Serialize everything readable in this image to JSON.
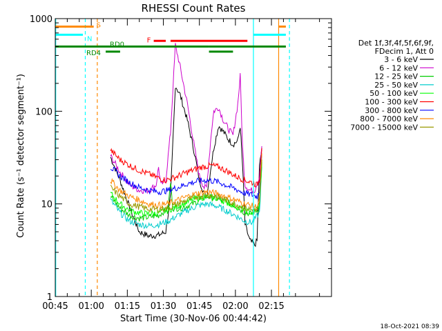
{
  "chart_data": {
    "type": "line",
    "title": "RHESSI Count Rates",
    "xlabel": "Start Time (30-Nov-06 00:44:42)",
    "ylabel": "Count Rate (s⁻¹ detector segment⁻¹)",
    "y_scale": "log",
    "ylim": [
      1,
      1000
    ],
    "xlim_minutes": [
      45,
      160
    ],
    "x_ticks": [
      {
        "m": 45,
        "label": "00:45"
      },
      {
        "m": 60,
        "label": "01:00"
      },
      {
        "m": 75,
        "label": "01:15"
      },
      {
        "m": 90,
        "label": "01:30"
      },
      {
        "m": 105,
        "label": "01:45"
      },
      {
        "m": 120,
        "label": "02:00"
      },
      {
        "m": 135,
        "label": "02:15"
      }
    ],
    "y_ticks": [
      {
        "v": 1,
        "label": "1"
      },
      {
        "v": 10,
        "label": "10"
      },
      {
        "v": 100,
        "label": "100"
      },
      {
        "v": 1000,
        "label": "1000"
      }
    ],
    "legend_header": [
      "Det 1f,3f,4f,5f,6f,9f,",
      "FDecim 1, Att 0"
    ],
    "series": [
      {
        "name": "3 - 6 keV",
        "color": "#000000",
        "points": [
          [
            68,
            32
          ],
          [
            72,
            18
          ],
          [
            76,
            9
          ],
          [
            80,
            5
          ],
          [
            84,
            4.5
          ],
          [
            88,
            4.6
          ],
          [
            91,
            5
          ],
          [
            93,
            12
          ],
          [
            95,
            190
          ],
          [
            97,
            150
          ],
          [
            100,
            80
          ],
          [
            103,
            35
          ],
          [
            105,
            18
          ],
          [
            107,
            13
          ],
          [
            108,
            12
          ],
          [
            111,
            40
          ],
          [
            113,
            70
          ],
          [
            115,
            60
          ],
          [
            117,
            50
          ],
          [
            119,
            44
          ],
          [
            121,
            48
          ],
          [
            122,
            70
          ],
          [
            123,
            25
          ],
          [
            124,
            6
          ],
          [
            126,
            4
          ],
          [
            128,
            3.6
          ],
          [
            129,
            4
          ],
          [
            130,
            25
          ],
          [
            131,
            40
          ]
        ]
      },
      {
        "name": "6 - 12 keV",
        "color": "#cc00cc",
        "points": [
          [
            68,
            33
          ],
          [
            72,
            22
          ],
          [
            76,
            16
          ],
          [
            80,
            14
          ],
          [
            84,
            14
          ],
          [
            87,
            16
          ],
          [
            88,
            25
          ],
          [
            89,
            16
          ],
          [
            91,
            18
          ],
          [
            93,
            60
          ],
          [
            95,
            520
          ],
          [
            97,
            300
          ],
          [
            100,
            120
          ],
          [
            103,
            40
          ],
          [
            105,
            20
          ],
          [
            107,
            15
          ],
          [
            108,
            15
          ],
          [
            110,
            60
          ],
          [
            111,
            100
          ],
          [
            113,
            110
          ],
          [
            115,
            80
          ],
          [
            117,
            65
          ],
          [
            119,
            55
          ],
          [
            121,
            120
          ],
          [
            122,
            240
          ],
          [
            123,
            40
          ],
          [
            124,
            16
          ],
          [
            126,
            14
          ],
          [
            128,
            14
          ],
          [
            130,
            20
          ],
          [
            131,
            42
          ]
        ]
      },
      {
        "name": "12 - 25 keV",
        "color": "#00cc00",
        "points": [
          [
            68,
            12
          ],
          [
            72,
            9
          ],
          [
            76,
            7.5
          ],
          [
            80,
            7
          ],
          [
            84,
            7.2
          ],
          [
            88,
            7.5
          ],
          [
            92,
            9
          ],
          [
            93,
            17
          ],
          [
            94,
            9
          ],
          [
            97,
            9
          ],
          [
            100,
            9.5
          ],
          [
            104,
            10.5
          ],
          [
            108,
            12
          ],
          [
            112,
            11.5
          ],
          [
            116,
            10.5
          ],
          [
            120,
            9.5
          ],
          [
            124,
            8
          ],
          [
            127,
            7.8
          ],
          [
            130,
            9
          ],
          [
            131,
            30
          ]
        ]
      },
      {
        "name": "25 - 50 keV",
        "color": "#00cccc",
        "points": [
          [
            68,
            11
          ],
          [
            72,
            8
          ],
          [
            76,
            6.5
          ],
          [
            80,
            6
          ],
          [
            84,
            5.8
          ],
          [
            88,
            6
          ],
          [
            92,
            6.5
          ],
          [
            96,
            7.5
          ],
          [
            100,
            8.5
          ],
          [
            104,
            9.5
          ],
          [
            108,
            10
          ],
          [
            112,
            9.5
          ],
          [
            116,
            8.5
          ],
          [
            120,
            7.5
          ],
          [
            124,
            6.5
          ],
          [
            127,
            6.3
          ],
          [
            130,
            8
          ],
          [
            131,
            25
          ]
        ]
      },
      {
        "name": "50 - 100 keV",
        "color": "#00ff00",
        "points": [
          [
            68,
            13
          ],
          [
            72,
            10
          ],
          [
            76,
            8.5
          ],
          [
            80,
            8
          ],
          [
            84,
            7.8
          ],
          [
            88,
            8
          ],
          [
            92,
            8.5
          ],
          [
            96,
            9.5
          ],
          [
            100,
            10.5
          ],
          [
            104,
            11.5
          ],
          [
            108,
            12
          ],
          [
            112,
            11.5
          ],
          [
            116,
            10.5
          ],
          [
            120,
            9.5
          ],
          [
            124,
            8.5
          ],
          [
            127,
            8
          ],
          [
            130,
            9.5
          ],
          [
            131,
            28
          ]
        ]
      },
      {
        "name": "100 - 300 keV",
        "color": "#ff0000",
        "points": [
          [
            68,
            38
          ],
          [
            72,
            30
          ],
          [
            76,
            26
          ],
          [
            80,
            23
          ],
          [
            84,
            21
          ],
          [
            88,
            19
          ],
          [
            91,
            18
          ],
          [
            94,
            19
          ],
          [
            98,
            21
          ],
          [
            102,
            23
          ],
          [
            106,
            25
          ],
          [
            110,
            26
          ],
          [
            113,
            25
          ],
          [
            116,
            23
          ],
          [
            120,
            20
          ],
          [
            124,
            18
          ],
          [
            127,
            17
          ],
          [
            129,
            16
          ],
          [
            130,
            18
          ],
          [
            131,
            40
          ]
        ]
      },
      {
        "name": "300 - 800 keV",
        "color": "#0000ff",
        "points": [
          [
            68,
            25
          ],
          [
            72,
            20
          ],
          [
            76,
            17
          ],
          [
            80,
            15
          ],
          [
            84,
            14
          ],
          [
            88,
            13.5
          ],
          [
            92,
            14
          ],
          [
            96,
            15
          ],
          [
            100,
            16.5
          ],
          [
            104,
            17.5
          ],
          [
            108,
            18
          ],
          [
            112,
            17.5
          ],
          [
            116,
            16
          ],
          [
            120,
            14.5
          ],
          [
            124,
            13
          ],
          [
            127,
            12.5
          ],
          [
            129,
            12
          ],
          [
            130,
            14
          ],
          [
            131,
            35
          ]
        ]
      },
      {
        "name": "800 - 7000 keV",
        "color": "#ff8800",
        "points": [
          [
            68,
            18
          ],
          [
            72,
            14
          ],
          [
            76,
            12
          ],
          [
            80,
            11
          ],
          [
            84,
            10
          ],
          [
            88,
            9.7
          ],
          [
            92,
            10
          ],
          [
            96,
            11
          ],
          [
            100,
            12
          ],
          [
            104,
            13
          ],
          [
            108,
            13.5
          ],
          [
            112,
            13
          ],
          [
            116,
            12
          ],
          [
            120,
            11
          ],
          [
            124,
            10
          ],
          [
            127,
            9.5
          ],
          [
            129,
            9.2
          ],
          [
            130,
            11
          ],
          [
            131,
            35
          ]
        ]
      },
      {
        "name": "7000 - 15000 keV",
        "color": "#999900",
        "points": [
          [
            68,
            15
          ],
          [
            72,
            12
          ],
          [
            76,
            10
          ],
          [
            80,
            9.3
          ],
          [
            84,
            8.8
          ],
          [
            88,
            8.7
          ],
          [
            92,
            9
          ],
          [
            96,
            10
          ],
          [
            100,
            11
          ],
          [
            104,
            12
          ],
          [
            108,
            12.5
          ],
          [
            112,
            12
          ],
          [
            116,
            11
          ],
          [
            120,
            10
          ],
          [
            124,
            9
          ],
          [
            127,
            8.6
          ],
          [
            129,
            8.4
          ],
          [
            130,
            10
          ],
          [
            131,
            30
          ]
        ]
      }
    ],
    "vertical_lines": [
      {
        "m": 45.2,
        "color": "#00ffff",
        "style": "solid"
      },
      {
        "m": 57.5,
        "color": "#00ffff",
        "style": "dashed"
      },
      {
        "m": 62.5,
        "color": "#ff8800",
        "style": "dashed"
      },
      {
        "m": 127.5,
        "color": "#00ffff",
        "style": "solid"
      },
      {
        "m": 138,
        "color": "#ff8800",
        "style": "solid"
      },
      {
        "m": 142.5,
        "color": "#00ffff",
        "style": "dashed"
      }
    ],
    "flag_bars": [
      {
        "label": "S",
        "color": "#ff8800",
        "row_value": 820,
        "segments": [
          [
            45,
            61
          ],
          [
            138,
            141
          ]
        ]
      },
      {
        "label": "N",
        "color": "#00ffff",
        "row_value": 670,
        "segments": [
          [
            45,
            56.5
          ],
          [
            127.5,
            141
          ]
        ]
      },
      {
        "label": "F",
        "color": "#ff0000",
        "row_value": 575,
        "segments": [
          [
            86,
            91
          ],
          [
            93,
            125
          ]
        ]
      },
      {
        "label": "RD0",
        "color": "#008800",
        "row_value": 500,
        "segments": [
          [
            45,
            109
          ],
          [
            109,
            141
          ]
        ]
      },
      {
        "label": "RD4",
        "color": "#008800",
        "row_value": 440,
        "segments": [
          [
            66,
            72
          ],
          [
            109,
            119
          ]
        ]
      }
    ],
    "timestamp": "18-Oct-2021 08:39"
  }
}
